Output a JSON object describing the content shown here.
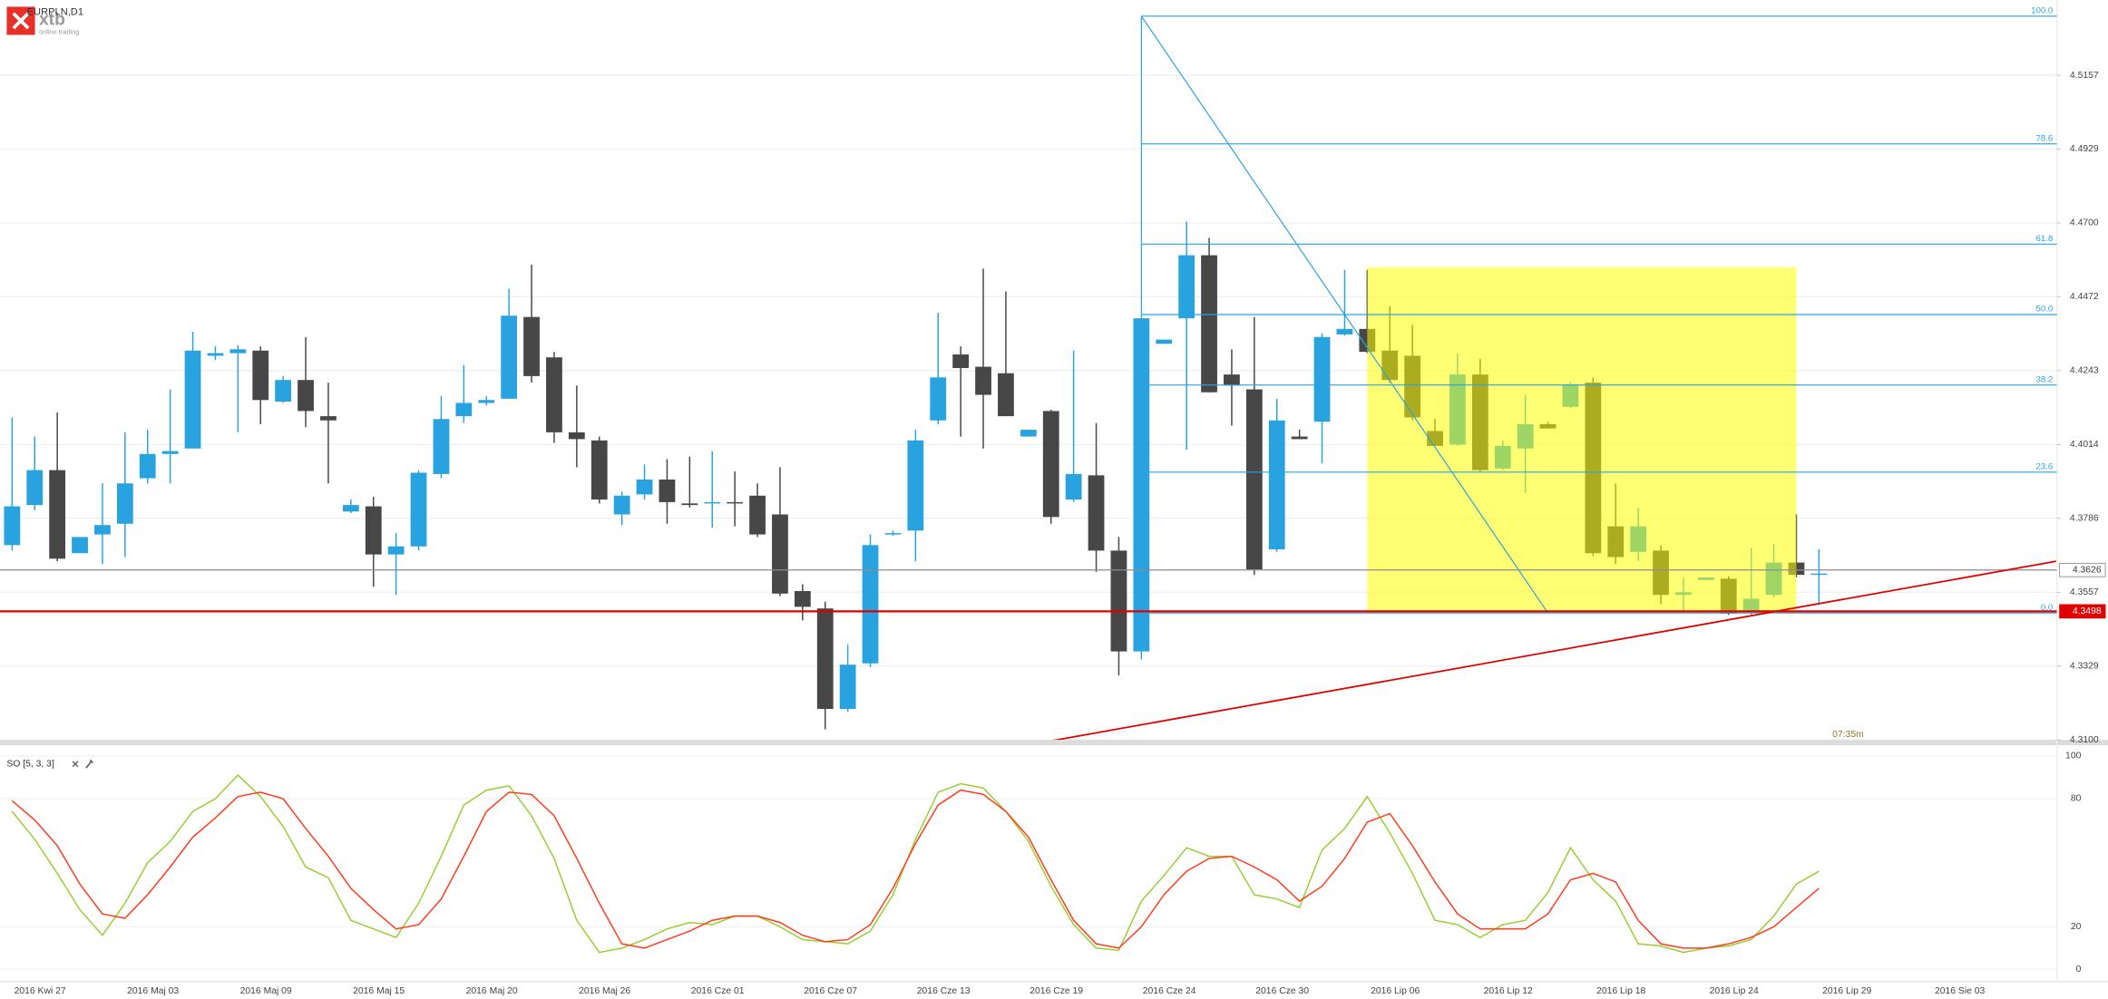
{
  "brand": {
    "name": "xtb",
    "tagline": "online trading"
  },
  "chart_data": [
    {
      "type": "candlestick",
      "title": "EURPLN,D1",
      "categories": [
        null,
        "2016 Kwi 27",
        null,
        null,
        null,
        null,
        "2016 Maj 03",
        null,
        null,
        null,
        null,
        "2016 Maj 09",
        null,
        null,
        null,
        null,
        "2016 Maj 15",
        null,
        null,
        null,
        null,
        "2016 Maj 20",
        null,
        null,
        null,
        null,
        "2016 Maj 26",
        null,
        null,
        null,
        null,
        "2016 Cze 01",
        null,
        null,
        null,
        null,
        "2016 Cze 07",
        null,
        null,
        null,
        null,
        "2016 Cze 13",
        null,
        null,
        null,
        null,
        "2016 Cze 19",
        null,
        null,
        null,
        null,
        "2016 Cze 24",
        null,
        null,
        null,
        null,
        "2016 Cze 30",
        null,
        null,
        null,
        null,
        "2016 Lip 06",
        null,
        null,
        null,
        null,
        "2016 Lip 12",
        null,
        null,
        null,
        null,
        "2016 Lip 18",
        null,
        null,
        null,
        null,
        "2016 Lip 24",
        null,
        null,
        null,
        null,
        "2016 Lip 29",
        null,
        null,
        null,
        null,
        "2016 Sie 03",
        null,
        null,
        null,
        null
      ],
      "open": [
        4.3703,
        4.3827,
        4.3935,
        4.3678,
        4.3736,
        4.3769,
        4.391,
        4.3985,
        4.4002,
        4.4289,
        4.4297,
        4.4305,
        4.4147,
        4.4214,
        4.4102,
        4.3807,
        4.3823,
        4.3674,
        4.3699,
        4.3923,
        4.4102,
        4.4143,
        4.4156,
        4.4409,
        4.4284,
        4.4052,
        4.4027,
        4.3798,
        4.386,
        4.3906,
        4.3832,
        4.3832,
        4.3836,
        4.3856,
        4.3798,
        4.3561,
        4.3507,
        4.3196,
        4.3337,
        4.3736,
        4.3748,
        4.4089,
        4.4293,
        4.4255,
        4.4235,
        4.4039,
        4.4118,
        4.3844,
        4.3919,
        4.3686,
        4.3374,
        4.4326,
        4.4405,
        4.46,
        4.4231,
        4.4185,
        4.369,
        4.4039,
        4.4085,
        4.4355,
        4.4372,
        4.4305,
        4.4289,
        4.4056,
        4.4014,
        4.4231,
        4.394,
        4.4002,
        4.4077,
        4.4131,
        4.4206,
        4.3761,
        4.3682,
        4.3686,
        4.3549,
        4.3595,
        4.3599,
        4.3495,
        4.3549,
        4.3649,
        4.3611,
        null,
        null,
        null,
        null,
        null,
        null,
        null,
        null,
        null,
        null
      ],
      "high": [
        4.4098,
        4.4039,
        4.4114,
        4.3728,
        4.3894,
        4.4052,
        4.406,
        4.4185,
        4.4363,
        4.4318,
        4.4322,
        4.4318,
        4.4226,
        4.4347,
        4.4206,
        4.3844,
        4.3852,
        4.374,
        4.3935,
        4.4164,
        4.426,
        4.4164,
        4.4496,
        4.4571,
        4.4301,
        4.4197,
        4.4039,
        4.3869,
        4.3952,
        4.3969,
        4.3977,
        4.3994,
        4.3931,
        4.3894,
        4.3944,
        4.3582,
        4.3528,
        4.3395,
        4.3736,
        4.3748,
        4.406,
        4.4422,
        4.4318,
        4.4559,
        4.4488,
        4.406,
        4.4122,
        4.4305,
        4.4081,
        4.3728,
        4.4405,
        4.4339,
        4.4704,
        4.4654,
        4.4309,
        4.4409,
        4.4156,
        4.406,
        4.4359,
        4.4555,
        4.4555,
        4.4442,
        4.4384,
        4.4093,
        4.4297,
        4.428,
        4.4027,
        4.4168,
        4.4085,
        4.4206,
        4.4222,
        4.3894,
        4.3819,
        4.3703,
        4.3603,
        4.3603,
        4.3607,
        4.3694,
        4.3707,
        4.3798,
        4.369,
        null,
        null,
        null,
        null,
        null,
        null,
        null,
        null,
        null,
        null
      ],
      "low": [
        4.3686,
        4.3811,
        4.3653,
        4.3678,
        4.3645,
        4.3666,
        4.3894,
        4.3894,
        4.4002,
        4.4276,
        4.4052,
        4.4077,
        4.4143,
        4.4068,
        4.3894,
        4.3802,
        4.3574,
        4.3549,
        4.3686,
        4.391,
        4.4081,
        4.4135,
        4.4156,
        4.4206,
        4.4019,
        4.3944,
        4.3832,
        4.3765,
        4.3844,
        4.3769,
        4.3819,
        4.3757,
        4.3761,
        4.3728,
        4.3545,
        4.347,
        4.3133,
        4.3187,
        4.3325,
        4.3732,
        4.3653,
        4.4077,
        4.4039,
        4.4002,
        4.4102,
        4.4039,
        4.3769,
        4.3836,
        4.362,
        4.33,
        4.3349,
        4.4326,
        4.3998,
        4.4176,
        4.4073,
        4.3611,
        4.3682,
        4.4031,
        4.3956,
        4.4351,
        4.4297,
        4.4206,
        4.4089,
        4.401,
        4.401,
        4.3927,
        4.3935,
        4.3865,
        4.4064,
        4.4127,
        4.3669,
        4.3645,
        4.3653,
        4.352,
        4.3499,
        4.3595,
        4.3487,
        4.3487,
        4.3541,
        4.3603,
        4.352,
        null,
        null,
        null,
        null,
        null,
        null,
        null,
        null,
        null,
        null
      ],
      "close": [
        4.3823,
        4.3935,
        4.3661,
        4.3728,
        4.3765,
        4.3894,
        4.3985,
        4.3994,
        4.4305,
        4.4297,
        4.4309,
        4.4152,
        4.4214,
        4.4118,
        4.4089,
        4.3827,
        4.3674,
        4.3699,
        4.3927,
        4.4093,
        4.4143,
        4.4152,
        4.4413,
        4.4226,
        4.4052,
        4.4031,
        4.3844,
        4.3856,
        4.3906,
        4.3836,
        4.3827,
        4.3836,
        4.3832,
        4.3736,
        4.3553,
        4.3512,
        4.3196,
        4.3333,
        4.3703,
        4.374,
        4.4027,
        4.4222,
        4.4251,
        4.4168,
        4.4102,
        4.406,
        4.379,
        4.3923,
        4.3686,
        4.3374,
        4.4405,
        4.4339,
        4.46,
        4.4176,
        4.4197,
        4.3628,
        4.4089,
        4.4031,
        4.4347,
        4.4372,
        4.4301,
        4.4214,
        4.4098,
        4.401,
        4.4231,
        4.3935,
        4.401,
        4.4077,
        4.4064,
        4.4201,
        4.3678,
        4.3666,
        4.3761,
        4.3549,
        4.3557,
        4.3603,
        4.3491,
        4.3537,
        4.3649,
        4.3611,
        4.3615,
        null,
        null,
        null,
        null,
        null,
        null,
        null,
        null,
        null,
        null
      ],
      "up_color": "#29a3df",
      "down_color": "#474747",
      "ylim": [
        4.3092,
        4.539
      ],
      "yticks": [
        4.5157,
        4.4929,
        {
          "value": 4.47,
          "label": "4.4700"
        },
        4.4472,
        4.4243,
        4.4014,
        4.3786,
        4.3557,
        4.3329,
        {
          "value": 4.31,
          "label": "4.3100"
        }
      ],
      "grid": true,
      "fib": {
        "high": 4.534,
        "low": 4.3493,
        "anchors": [
          50,
          68
        ],
        "color": "#29a3df",
        "levels": [
          {
            "value": 100,
            "label": "100.0"
          },
          78.6,
          61.8,
          {
            "value": 50,
            "label": "50.0"
          },
          38.2,
          23.6,
          {
            "value": 0,
            "label": "0.0"
          }
        ]
      },
      "highlight": {
        "from": 60,
        "to": 79,
        "top": 4.4563,
        "bottom": 4.3493,
        "color": "#ffff00"
      },
      "price_lines": [
        {
          "value": 4.3626,
          "color": "#8c8c8c"
        },
        {
          "value": 4.3498,
          "color": "#e00000"
        }
      ],
      "trendline": {
        "points": [
          [
            45.6,
            4.3092
          ],
          [
            90.5,
            4.3653
          ]
        ],
        "color": "#e00000"
      },
      "countdown": "07:35m"
    },
    {
      "type": "line",
      "title": "SO [5, 3, 3]",
      "series": [
        {
          "color": "#9acd32",
          "values": [
            74,
            61,
            45,
            28,
            16,
            31,
            50,
            60,
            74,
            80,
            91,
            81,
            67,
            48,
            43,
            23,
            19,
            15,
            31,
            53,
            77,
            84,
            86,
            72,
            52,
            23,
            8,
            10,
            14,
            19,
            22,
            21,
            25,
            25,
            20,
            14,
            13,
            12,
            18,
            35,
            61,
            83,
            87,
            85,
            74,
            60,
            39,
            21,
            10,
            9,
            32,
            44,
            57,
            53,
            53,
            35,
            33,
            29,
            56,
            66,
            81,
            64,
            45,
            23,
            21,
            15,
            21,
            23,
            36,
            57,
            42,
            32,
            12,
            11,
            8,
            10,
            11,
            14,
            25,
            40,
            46,
            null,
            null,
            null,
            null,
            null,
            null,
            null,
            null,
            null,
            null
          ]
        },
        {
          "color": "#ff3b1f",
          "values": [
            79,
            70,
            58,
            40,
            26,
            24,
            35,
            48,
            62,
            71,
            81,
            83,
            80,
            66,
            53,
            38,
            28,
            19,
            21,
            33,
            53,
            74,
            83,
            82,
            72,
            52,
            31,
            12,
            10,
            14,
            18,
            23,
            25,
            25,
            22,
            16,
            13,
            14,
            21,
            38,
            59,
            77,
            84,
            82,
            74,
            62,
            42,
            23,
            12,
            10,
            20,
            35,
            46,
            52,
            53,
            48,
            42,
            32,
            39,
            52,
            69,
            73,
            58,
            41,
            26,
            19,
            19,
            19,
            26,
            42,
            45,
            41,
            23,
            12,
            10,
            10,
            12,
            15,
            20,
            29,
            38,
            null,
            null,
            null,
            null,
            null,
            null,
            null,
            null,
            null,
            null
          ]
        }
      ],
      "ylim": [
        0,
        100
      ],
      "yticks": [
        0,
        20,
        80,
        100
      ]
    }
  ]
}
